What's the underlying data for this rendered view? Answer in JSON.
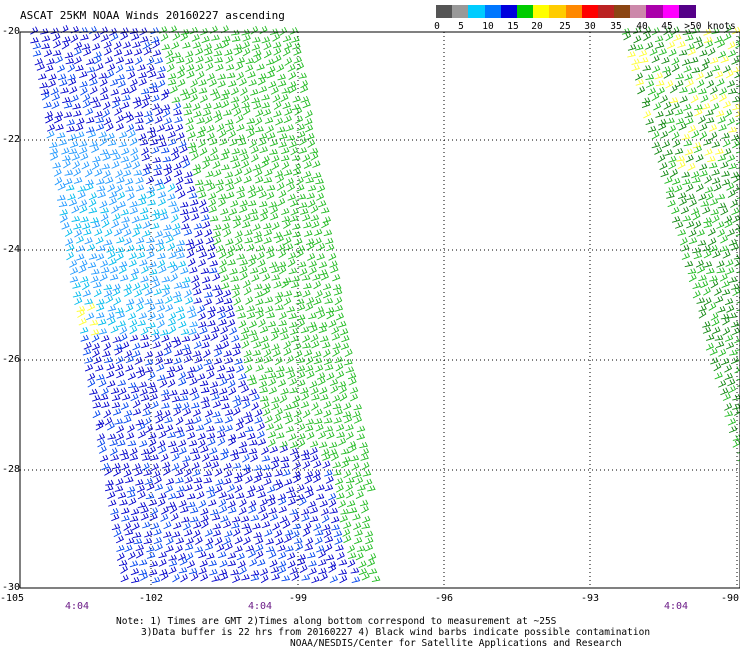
{
  "title": "ASCAT 25KM NOAA Winds 20160227 ascending",
  "legend": {
    "labels": [
      "0",
      "5",
      "10",
      "15",
      "20",
      "25",
      "30",
      "35",
      "40",
      "45",
      ">50 knots"
    ],
    "colors": [
      "#555555",
      "#999999",
      "#00ccff",
      "#0077ff",
      "#0000dd",
      "#00cc00",
      "#ffff00",
      "#ffcc00",
      "#ff8800",
      "#ff0000",
      "#bb2222",
      "#8b4513",
      "#cc88aa",
      "#aa00aa",
      "#ff00ff",
      "#550088"
    ]
  },
  "latitudes": [
    "-20",
    "-22",
    "-24",
    "-26",
    "-28",
    "-30"
  ],
  "longitudes": [
    "-105",
    "-102",
    "-99",
    "-96",
    "-93",
    "-90"
  ],
  "time_labels": [
    "4:04",
    "4:04",
    "4:04"
  ],
  "notes": {
    "line1": "Note: 1) Times are GMT 2)Times along bottom correspond to measurement at ~25S",
    "line2": "3)Data buffer is 22 hrs from 20160227 4) Black wind barbs indicate possible contamination",
    "line3": "NOAA/NESDIS/Center for Satellite Applications and Research"
  },
  "wind_colors": {
    "green": "#22bb22",
    "dark_blue": "#0000cc",
    "blue": "#0044ee",
    "cyan": "#00bbee",
    "light_blue": "#2299ff",
    "yellow": "#ffff33",
    "dark_green": "#118811"
  }
}
